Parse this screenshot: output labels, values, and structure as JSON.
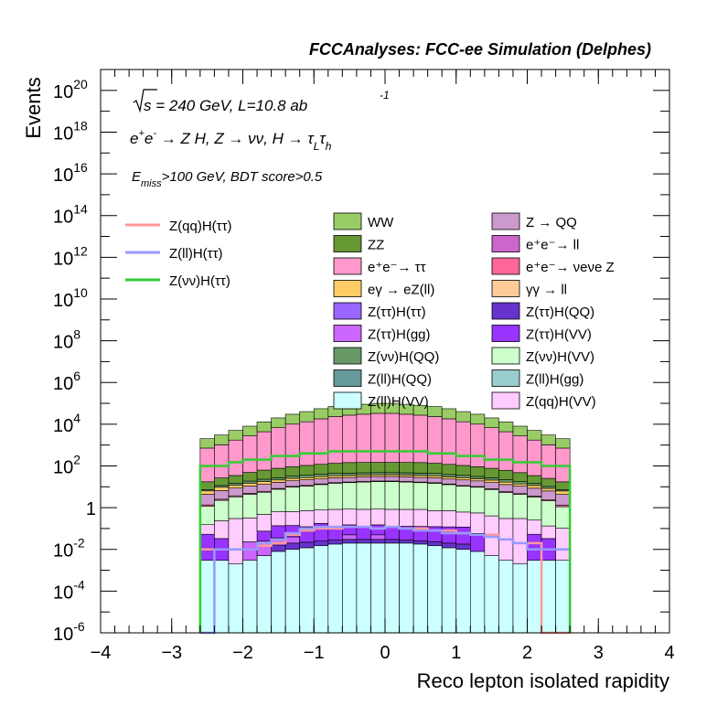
{
  "chart_data": {
    "type": "bar",
    "stacked": true,
    "title": "FCCAnalyses: FCC-ee Simulation (Delphes)",
    "xlabel": "Reco lepton isolated rapidity",
    "ylabel": "Events",
    "xlim": [
      -4,
      4
    ],
    "ylim": [
      1e-06,
      1e+21
    ],
    "log_y": true,
    "x_ticks": [
      -4,
      -3,
      -2,
      -1,
      0,
      1,
      2,
      3,
      4
    ],
    "x_tick_labels": [
      "−4",
      "−3",
      "−2",
      "−1",
      "0",
      "1",
      "2",
      "3",
      "4"
    ],
    "y_tick_labels": [
      {
        "base": "10",
        "exp": "20",
        "value": 1e+20
      },
      {
        "base": "10",
        "exp": "18",
        "value": 1e+18
      },
      {
        "base": "10",
        "exp": "16",
        "value": 1e+16
      },
      {
        "base": "10",
        "exp": "14",
        "value": 100000000000000.0
      },
      {
        "base": "10",
        "exp": "12",
        "value": 1000000000000.0
      },
      {
        "base": "10",
        "exp": "10",
        "value": 10000000000.0
      },
      {
        "base": "10",
        "exp": "8",
        "value": 100000000.0
      },
      {
        "base": "10",
        "exp": "6",
        "value": 1000000.0
      },
      {
        "base": "10",
        "exp": "4",
        "value": 10000.0
      },
      {
        "base": "10",
        "exp": "2",
        "value": 100.0
      },
      {
        "base": "1",
        "exp": "",
        "value": 1
      },
      {
        "base": "10",
        "exp": "-2",
        "value": 0.01
      },
      {
        "base": "10",
        "exp": "-4",
        "value": 0.0001
      },
      {
        "base": "10",
        "exp": "-6",
        "value": 1e-06
      }
    ],
    "annotations": {
      "sqrt_s": "s = 240 GeV, L=10.8 ab",
      "lumi_exp": "-1",
      "process": "e⁺e⁻ → Z H, Z → νν, H → τLτh",
      "cuts": "Emiss>100 GeV, BDT score>0.5"
    },
    "bins": [
      -2.6,
      -2.4,
      -2.2,
      -2.0,
      -1.8,
      -1.6,
      -1.4,
      -1.2,
      -1.0,
      -0.8,
      -0.6,
      -0.4,
      -0.2,
      0.0,
      0.2,
      0.4,
      0.6,
      0.8,
      1.0,
      1.2,
      1.4,
      1.6,
      1.8,
      2.0,
      2.2,
      2.4,
      2.6
    ],
    "stack_totals": [
      2000.0,
      3000.0,
      5000.0,
      8000.0,
      13000.0,
      20000.0,
      30000.0,
      40000.0,
      55000.0,
      70000.0,
      80000.0,
      90000.0,
      100000.0,
      100000.0,
      90000.0,
      80000.0,
      70000.0,
      55000.0,
      40000.0,
      30000.0,
      20000.0,
      13000.0,
      8000.0,
      5000.0,
      3000.0,
      2000.0
    ],
    "stack_series": [
      {
        "name": "Z(ll)H(VV)",
        "color": "#ccffff",
        "values": [
          0.003,
          0.003,
          0.002,
          0.003,
          0.005,
          0.008,
          0.01,
          0.012,
          0.015,
          0.018,
          0.02,
          0.02,
          0.02,
          0.02,
          0.02,
          0.018,
          0.015,
          0.012,
          0.01,
          0.008,
          0.005,
          0.003,
          0.002,
          0.003,
          0.003,
          0.003
        ]
      },
      {
        "name": "Z(ττ)H(QQ)",
        "color": "#6633cc",
        "values": [
          0.0,
          0.0,
          0.0,
          0.0,
          0.0,
          0.008,
          0.01,
          0.01,
          0.01,
          0.01,
          0.01,
          0.01,
          0.01,
          0.01,
          0.008,
          0.008,
          0.008,
          0.008,
          0.008,
          0.0,
          0.0,
          0.0,
          0.0,
          0.0,
          0.0,
          0.0
        ]
      },
      {
        "name": "Z(ττ)H(gg)",
        "color": "#cc66ff",
        "values": [
          0.0,
          0.0,
          0.0,
          0.02,
          0.02,
          0.02,
          0.02,
          0.0,
          0.0,
          0.0,
          0.02,
          0.0,
          0.02,
          0.0,
          0.0,
          0.0,
          0.0,
          0.0,
          0.0,
          0.0,
          0.0,
          0.0,
          0.0,
          0.0,
          0.0,
          0.0
        ]
      },
      {
        "name": "Z(ττ)H(VV)",
        "color": "#9933ff",
        "values": [
          0.05,
          0.03,
          0.0,
          0.0,
          0.05,
          0.1,
          0.1,
          0.1,
          0.15,
          0.1,
          0.1,
          0.1,
          0.1,
          0.1,
          0.1,
          0.1,
          0.1,
          0.1,
          0.1,
          0.05,
          0.0,
          0.0,
          0.0,
          0.05,
          0.03,
          0.0
        ]
      },
      {
        "name": "Z(qq)H(VV)",
        "color": "#ffccff",
        "values": [
          0.1,
          0.2,
          0.3,
          0.3,
          0.4,
          0.5,
          0.5,
          0.6,
          0.6,
          0.7,
          0.7,
          0.7,
          0.7,
          0.7,
          0.7,
          0.7,
          0.6,
          0.6,
          0.5,
          0.5,
          0.4,
          0.3,
          0.3,
          0.2,
          0.1,
          0.1
        ]
      },
      {
        "name": "Z(νν)H(VV)",
        "color": "#ccffcc",
        "values": [
          1.0,
          2.0,
          3.0,
          4.0,
          5.0,
          7.0,
          9.0,
          10.0,
          12.0,
          14.0,
          15.0,
          16.0,
          17.0,
          17.0,
          16.0,
          15.0,
          14.0,
          12.0,
          10.0,
          9.0,
          7.0,
          5.0,
          4.0,
          3.0,
          2.0,
          1.0
        ]
      },
      {
        "name": "e⁺e⁻→ νeνe Z",
        "color": "#ff6699",
        "values": [
          0.2,
          0.3,
          0.4,
          0.5,
          0.6,
          0.7,
          0.8,
          0.9,
          1.0,
          1.0,
          1.1,
          1.1,
          1.1,
          1.1,
          1.1,
          1.0,
          1.0,
          0.9,
          0.8,
          0.7,
          0.6,
          0.5,
          0.4,
          0.3,
          0.2,
          0.2
        ]
      },
      {
        "name": "Z → QQ",
        "color": "#cc99cc",
        "values": [
          3.0,
          4.0,
          5.0,
          6.0,
          7.0,
          8.0,
          9.0,
          10.0,
          10.0,
          11.0,
          11.0,
          12.0,
          12.0,
          12.0,
          12.0,
          11.0,
          11.0,
          10.0,
          10.0,
          9.0,
          8.0,
          7.0,
          6.0,
          5.0,
          4.0,
          3.0
        ]
      },
      {
        "name": "eγ → eZ(ll)",
        "color": "#ffcc66",
        "values": [
          2.0,
          3.0,
          3.0,
          4.0,
          5.0,
          5.0,
          6.0,
          6.0,
          7.0,
          7.0,
          7.0,
          7.0,
          7.0,
          7.0,
          7.0,
          7.0,
          7.0,
          6.0,
          6.0,
          5.0,
          5.0,
          4.0,
          3.0,
          3.0,
          2.0,
          2.0
        ]
      },
      {
        "name": "Z(νν)H(QQ)",
        "color": "#669966",
        "values": [
          1.0,
          2.0,
          3.0,
          4.0,
          5.0,
          6.0,
          7.0,
          8.0,
          9.0,
          10.0,
          10.0,
          10.0,
          10.0,
          10.0,
          10.0,
          10.0,
          10.0,
          9.0,
          8.0,
          7.0,
          6.0,
          5.0,
          4.0,
          3.0,
          2.0,
          1.0
        ]
      },
      {
        "name": "ZZ",
        "color": "#669933",
        "values": [
          10.0,
          15.0,
          20.0,
          30.0,
          40.0,
          50.0,
          60.0,
          70.0,
          80.0,
          90.0,
          100.0,
          100.0,
          100.0,
          100.0,
          100.0,
          100.0,
          90.0,
          80.0,
          70.0,
          60.0,
          50.0,
          40.0,
          30.0,
          20.0,
          15.0,
          10.0
        ]
      },
      {
        "name": "e⁺e⁻→ ττ",
        "color": "#ff99cc",
        "values": [
          700.0,
          1000.0,
          1700.0,
          2700.0,
          4300.0,
          6700.0,
          10000.0,
          13000.0,
          18000.0,
          23000.0,
          27000.0,
          30000.0,
          33000.0,
          33000.0,
          30000.0,
          27000.0,
          23000.0,
          18000.0,
          13000.0,
          10000.0,
          6700.0,
          4300.0,
          2700.0,
          1700.0,
          1000.0,
          700.0
        ]
      },
      {
        "name": "WW",
        "color": "#99cc66",
        "values": [
          1300.0,
          2000.0,
          3300.0,
          5300.0,
          8600.0,
          13300.0,
          20000.0,
          27000.0,
          37000.0,
          47000.0,
          53000.0,
          60000.0,
          67000.0,
          67000.0,
          60000.0,
          53000.0,
          47000.0,
          37000.0,
          27000.0,
          20000.0,
          13300.0,
          8600.0,
          5300.0,
          3300.0,
          2000.0,
          1300.0
        ]
      }
    ],
    "line_series": [
      {
        "name": "Z(qq)H(ττ)",
        "color": "#ff9999",
        "values": [
          0.01,
          0.01,
          0.01,
          0.01,
          0.015,
          0.02,
          0.05,
          0.08,
          0.1,
          0.1,
          0.12,
          0.12,
          0.1,
          0.12,
          0.1,
          0.1,
          0.08,
          0.08,
          0.06,
          0.05,
          0.05,
          0.03,
          0.02,
          0.02,
          0.0,
          0.0
        ]
      },
      {
        "name": "Z(ll)H(ττ)",
        "color": "#9999ff",
        "values": [
          0.0,
          0.01,
          0.01,
          0.01,
          0.02,
          0.03,
          0.06,
          0.1,
          0.12,
          0.12,
          0.12,
          0.12,
          0.1,
          0.12,
          0.1,
          0.08,
          0.08,
          0.06,
          0.06,
          0.05,
          0.04,
          0.03,
          0.02,
          0.01,
          0.01,
          0.01
        ]
      },
      {
        "name": "Z(νν)H(ττ)",
        "color": "#33cc33",
        "values": [
          100.0,
          100.0,
          150.0,
          200.0,
          200.0,
          300.0,
          300.0,
          400.0,
          400.0,
          500.0,
          500.0,
          500.0,
          500.0,
          500.0,
          500.0,
          500.0,
          400.0,
          400.0,
          300.0,
          300.0,
          200.0,
          200.0,
          150.0,
          150.0,
          100.0,
          100.0
        ]
      }
    ],
    "legend_left": [
      {
        "name": "Z(qq)H(ττ)",
        "color": "#ff9999"
      },
      {
        "name": "Z(ll)H(ττ)",
        "color": "#9999ff"
      },
      {
        "name": "Z(νν)H(ττ)",
        "color": "#33cc33"
      }
    ],
    "legend_grid": [
      {
        "name": "WW",
        "color": "#99cc66"
      },
      {
        "name": "Z → QQ",
        "color": "#cc99cc"
      },
      {
        "name": "ZZ",
        "color": "#669933"
      },
      {
        "name": "e⁺e⁻→ ll",
        "color": "#cc66cc"
      },
      {
        "name": "e⁺e⁻→ ττ",
        "color": "#ff99cc"
      },
      {
        "name": "e⁺e⁻→ νeνe Z",
        "color": "#ff6699"
      },
      {
        "name": "eγ → eZ(ll)",
        "color": "#ffcc66"
      },
      {
        "name": "γγ → ll",
        "color": "#ffcc99"
      },
      {
        "name": "Z(ττ)H(ττ)",
        "color": "#9966ff"
      },
      {
        "name": "Z(ττ)H(QQ)",
        "color": "#6633cc"
      },
      {
        "name": "Z(ττ)H(gg)",
        "color": "#cc66ff"
      },
      {
        "name": "Z(ττ)H(VV)",
        "color": "#9933ff"
      },
      {
        "name": "Z(νν)H(QQ)",
        "color": "#669966"
      },
      {
        "name": "Z(νν)H(VV)",
        "color": "#ccffcc"
      },
      {
        "name": "Z(ll)H(QQ)",
        "color": "#669999"
      },
      {
        "name": "Z(ll)H(gg)",
        "color": "#99cccc"
      },
      {
        "name": "Z(ll)H(VV)",
        "color": "#ccffff"
      },
      {
        "name": "Z(qq)H(VV)",
        "color": "#ffccff"
      }
    ]
  }
}
